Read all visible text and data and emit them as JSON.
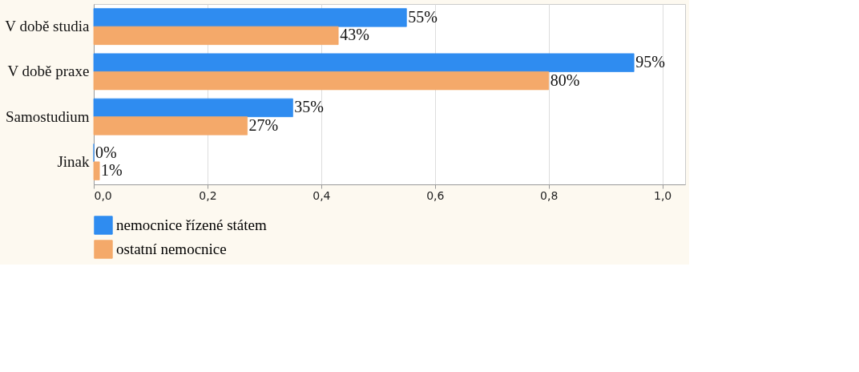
{
  "chart_data": {
    "type": "bar",
    "orientation": "horizontal",
    "categories": [
      "V době studia",
      "V době praxe",
      "Samostudium",
      "Jinak"
    ],
    "series": [
      {
        "name": "nemocnice řízené státem",
        "color": "#2f8cf0",
        "values": [
          0.55,
          0.95,
          0.35,
          0
        ],
        "value_labels": [
          "55%",
          "95%",
          "35%",
          "0%"
        ]
      },
      {
        "name": "ostatní nemocnice",
        "color": "#f4a96a",
        "values": [
          0.43,
          0.8,
          0.27,
          0.01
        ],
        "value_labels": [
          "43%",
          "80%",
          "27%",
          "1%"
        ]
      }
    ],
    "xlim": [
      0,
      1.04
    ],
    "xticks": [
      {
        "value": 0,
        "label": "0,0"
      },
      {
        "value": 0.2,
        "label": "0,2"
      },
      {
        "value": 0.4,
        "label": "0,4"
      },
      {
        "value": 0.6,
        "label": "0,6"
      },
      {
        "value": 0.8,
        "label": "0,8"
      },
      {
        "value": 1.0,
        "label": "1,0"
      }
    ],
    "grid": "x",
    "legend": "bottom"
  }
}
